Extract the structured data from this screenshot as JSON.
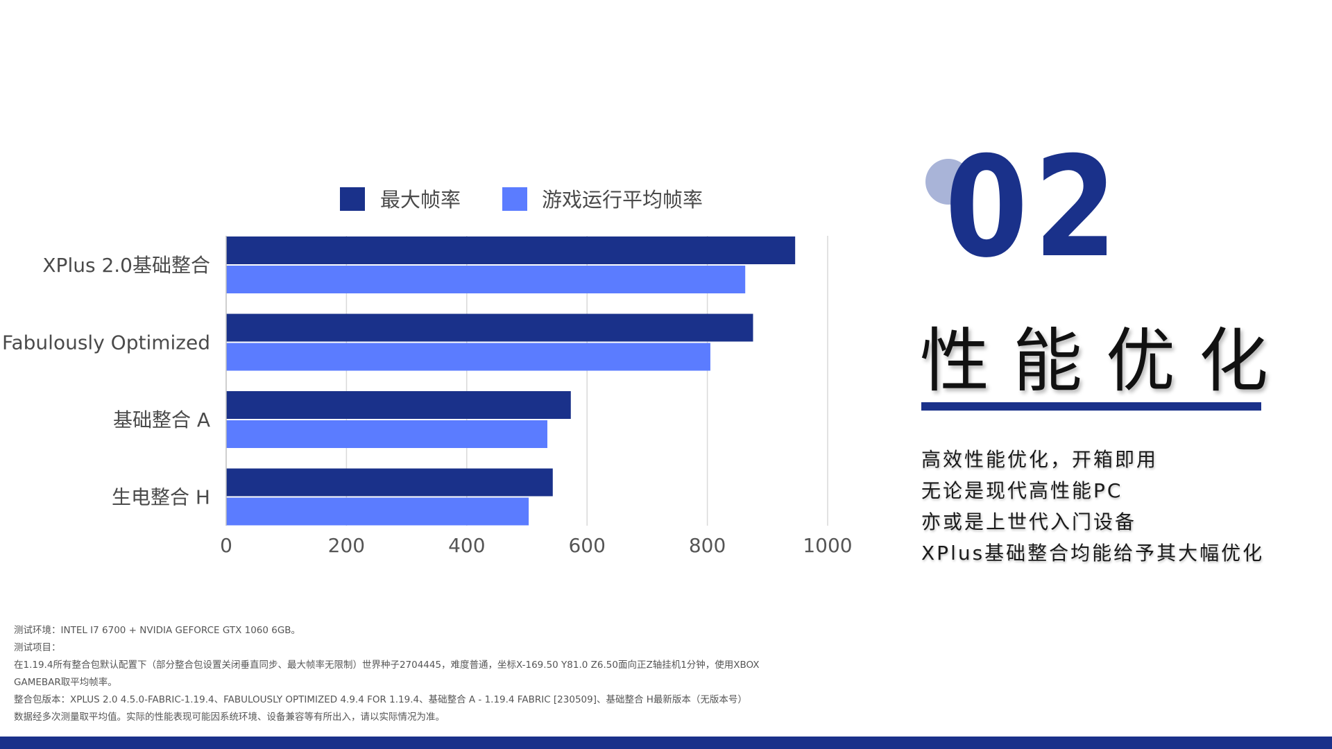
{
  "colors": {
    "series_max": "#1a318a",
    "series_avg": "#5b7cff",
    "accent": "#1a318a",
    "circle": "#a9b4d8",
    "grid": "#d9d9d9",
    "axis": "#bfbfbf"
  },
  "chart_data": {
    "type": "bar",
    "orientation": "horizontal",
    "categories": [
      "XPlus 2.0基础整合",
      "Fabulously Optimized",
      "基础整合 A",
      "生电整合 H"
    ],
    "series": [
      {
        "name": "最大帧率",
        "values": [
          946,
          876,
          573,
          543
        ]
      },
      {
        "name": "游戏运行平均帧率",
        "values": [
          863,
          805,
          534,
          503
        ]
      }
    ],
    "xlim": [
      0,
      1000
    ],
    "xticks": [
      0,
      200,
      400,
      600,
      800,
      1000
    ],
    "xtick_labels": [
      "0",
      "200",
      "400",
      "600",
      "800",
      "1000"
    ],
    "title": "",
    "xlabel": "",
    "ylabel": "",
    "legend": "top",
    "grid": true
  },
  "section": {
    "number": "02",
    "title": "性能优化",
    "description": [
      "高效性能优化，开箱即用",
      "无论是现代高性能PC",
      "亦或是上世代入门设备",
      "XPlus基础整合均能给予其大幅优化"
    ]
  },
  "notes": [
    "测试环境：INTEL I7 6700 + NVIDIA GEFORCE GTX 1060 6GB。",
    "测试项目：",
    "在1.19.4所有整合包默认配置下（部分整合包设置关闭垂直同步、最大帧率无限制）世界种子2704445，难度普通，坐标X-169.50 Y81.0 Z6.50面向正Z轴挂机1分钟，使用XBOX",
    "GAMEBAR取平均帧率。",
    "整合包版本：XPLUS 2.0 4.5.0-FABRIC-1.19.4、FABULOUSLY OPTIMIZED 4.9.4 FOR 1.19.4、基础整合 A - 1.19.4 FABRIC [230509]、基础整合 H最新版本（无版本号）",
    "数据经多次测量取平均值。实际的性能表现可能因系统环境、设备兼容等有所出入，请以实际情况为准。"
  ]
}
